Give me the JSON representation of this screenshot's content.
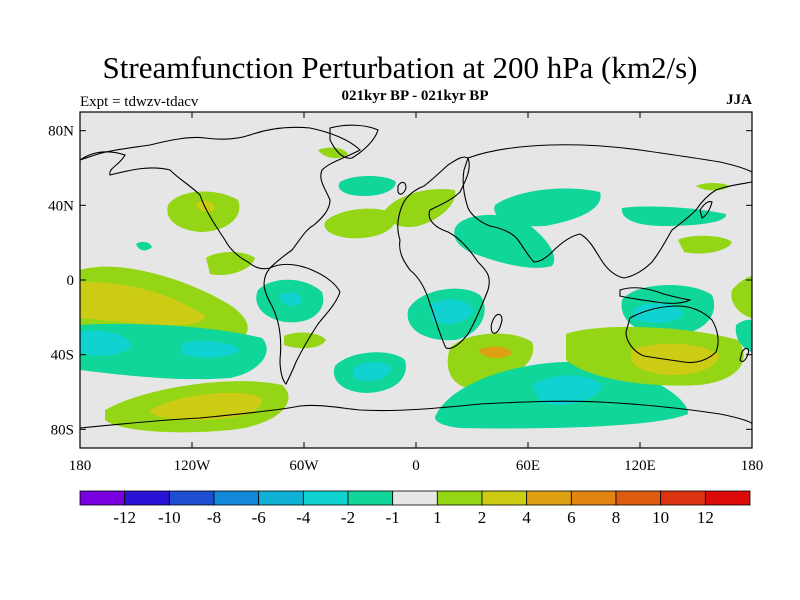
{
  "header": {
    "title": "Streamfunction Perturbation at 200 hPa (km2/s)",
    "subtitle": "021kyr BP - 021kyr BP",
    "experiment": "Expt = tdwzv-tdacv",
    "season": "JJA"
  },
  "map": {
    "projection": "cylindrical-equidistant",
    "lon_range": [
      -180,
      180
    ],
    "lat_range": [
      -90,
      90
    ],
    "background_color": "#e6e6e6",
    "xticks": [
      {
        "value": -180,
        "label": "180"
      },
      {
        "value": -120,
        "label": "120W"
      },
      {
        "value": -60,
        "label": "60W"
      },
      {
        "value": 0,
        "label": "0"
      },
      {
        "value": 60,
        "label": "60E"
      },
      {
        "value": 120,
        "label": "120E"
      },
      {
        "value": 180,
        "label": "180"
      }
    ],
    "yticks": [
      {
        "value": 80,
        "label": "80N"
      },
      {
        "value": 40,
        "label": "40N"
      },
      {
        "value": 0,
        "label": "0"
      },
      {
        "value": -40,
        "label": "40S"
      },
      {
        "value": -80,
        "label": "80S"
      }
    ]
  },
  "colorbar": {
    "colors": [
      "#7a00e0",
      "#2a12d6",
      "#1f4fd0",
      "#1188d8",
      "#0fb2d6",
      "#10d2d0",
      "#10d69a",
      "#e6e6e6",
      "#94d616",
      "#cccc14",
      "#dca012",
      "#e28412",
      "#de5c10",
      "#dc3410",
      "#dc0a0a"
    ],
    "labels": [
      "-12",
      "-10",
      "-8",
      "-6",
      "-4",
      "-2",
      "-1",
      "1",
      "2",
      "4",
      "6",
      "8",
      "10",
      "12"
    ]
  }
}
